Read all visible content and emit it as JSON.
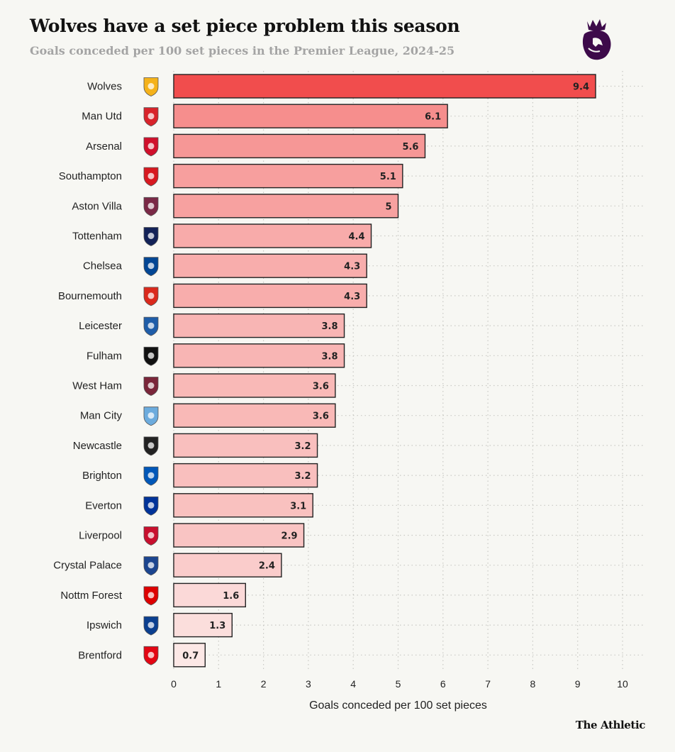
{
  "chart_data": {
    "type": "bar",
    "orientation": "horizontal",
    "title": "Wolves have a set piece problem this season",
    "subtitle": "Goals conceded per 100 set pieces in the Premier League, 2024-25",
    "xlabel": "Goals conceded per 100 set pieces",
    "ylabel": "",
    "xlim": [
      0,
      10
    ],
    "xticks": [
      0,
      1,
      2,
      3,
      4,
      5,
      6,
      7,
      8,
      9,
      10
    ],
    "grid": true,
    "categories": [
      "Wolves",
      "Man Utd",
      "Arsenal",
      "Southampton",
      "Aston Villa",
      "Tottenham",
      "Chelsea",
      "Bournemouth",
      "Leicester",
      "Fulham",
      "West Ham",
      "Man City",
      "Newcastle",
      "Brighton",
      "Everton",
      "Liverpool",
      "Crystal Palace",
      "Nottm Forest",
      "Ipswich",
      "Brentford"
    ],
    "values": [
      9.4,
      6.1,
      5.6,
      5.1,
      5,
      4.4,
      4.3,
      4.3,
      3.8,
      3.8,
      3.6,
      3.6,
      3.2,
      3.2,
      3.1,
      2.9,
      2.4,
      1.6,
      1.3,
      0.7
    ],
    "value_labels": [
      "9.4",
      "6.1",
      "5.6",
      "5.1",
      "5",
      "4.4",
      "4.3",
      "4.3",
      "3.8",
      "3.8",
      "3.6",
      "3.6",
      "3.2",
      "3.2",
      "3.1",
      "2.9",
      "2.4",
      "1.6",
      "1.3",
      "0.7"
    ],
    "crest_icons": [
      "wolves-crest-icon",
      "man-utd-crest-icon",
      "arsenal-crest-icon",
      "southampton-crest-icon",
      "aston-villa-crest-icon",
      "tottenham-crest-icon",
      "chelsea-crest-icon",
      "bournemouth-crest-icon",
      "leicester-crest-icon",
      "fulham-crest-icon",
      "west-ham-crest-icon",
      "man-city-crest-icon",
      "newcastle-crest-icon",
      "brighton-crest-icon",
      "everton-crest-icon",
      "liverpool-crest-icon",
      "crystal-palace-crest-icon",
      "nottm-forest-crest-icon",
      "ipswich-crest-icon",
      "brentford-crest-icon"
    ],
    "crest_colors": [
      "#f5b21a",
      "#d8232a",
      "#d0102b",
      "#d71920",
      "#7a2946",
      "#132257",
      "#034694",
      "#da291c",
      "#1f5da8",
      "#111111",
      "#7a263a",
      "#6cabdd",
      "#222222",
      "#0057b8",
      "#003399",
      "#c8102e",
      "#1b458f",
      "#dd0000",
      "#0b3f8f",
      "#e30613"
    ],
    "bar_color_max": "#f14d4d",
    "bar_color_min": "#fce8e6"
  },
  "logo": "premier-league-lion-icon",
  "source": "The Athletic"
}
